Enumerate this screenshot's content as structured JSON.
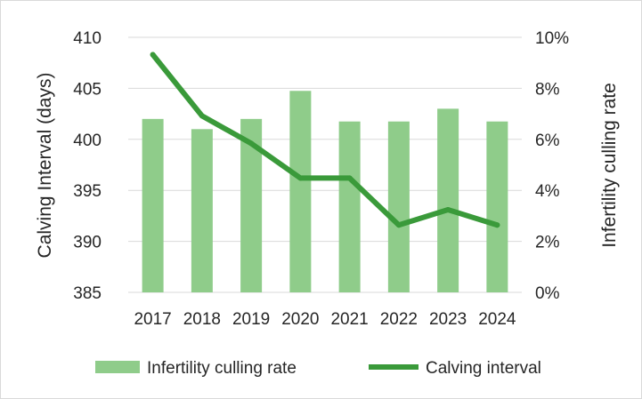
{
  "chart_data": {
    "type": "bar",
    "categories": [
      "2017",
      "2018",
      "2019",
      "2020",
      "2021",
      "2022",
      "2023",
      "2024"
    ],
    "series": [
      {
        "name": "Infertility culling rate",
        "type": "bar",
        "axis": "right",
        "color": "#8fcc8a",
        "values": [
          6.8,
          6.4,
          6.8,
          7.9,
          6.7,
          6.7,
          7.2,
          6.7
        ]
      },
      {
        "name": "Calving interval",
        "type": "line",
        "axis": "left",
        "color": "#3a9a3a",
        "values": [
          408.3,
          402.3,
          399.6,
          396.2,
          396.2,
          391.6,
          393.1,
          391.6
        ]
      }
    ],
    "ylabel": "Calving Interval (days)",
    "y2label": "Infertility culling rate",
    "ylim": [
      385,
      410
    ],
    "yticks": [
      "385",
      "390",
      "395",
      "400",
      "405",
      "410"
    ],
    "y2lim": [
      0,
      10
    ],
    "y2ticks": [
      "0%",
      "2%",
      "4%",
      "6%",
      "8%",
      "10%"
    ],
    "grid": true,
    "legend": "bottom"
  }
}
